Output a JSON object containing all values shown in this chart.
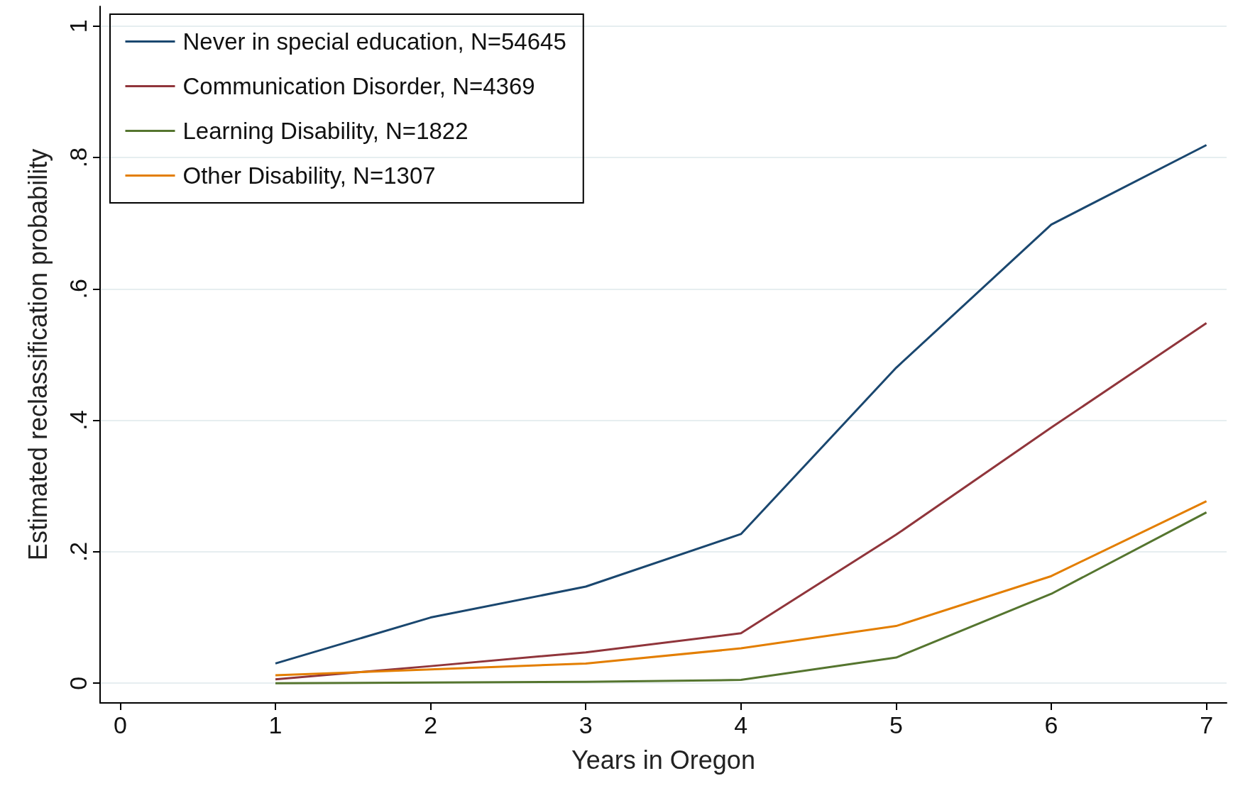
{
  "chart_data": {
    "type": "line",
    "xlabel": "Years in Oregon",
    "ylabel": "Estimated reclassification probability",
    "x": [
      1,
      2,
      3,
      4,
      5,
      6,
      7
    ],
    "series": [
      {
        "name": "Never in special education, N=54645",
        "color": "#1a476f",
        "values": [
          0.03,
          0.1,
          0.147,
          0.227,
          0.48,
          0.698,
          0.819
        ]
      },
      {
        "name": "Communication Disorder, N=4369",
        "color": "#90353b",
        "values": [
          0.006,
          0.026,
          0.047,
          0.076,
          0.226,
          0.389,
          0.548
        ]
      },
      {
        "name": "Learning Disability, N=1822",
        "color": "#55752f",
        "values": [
          0.0,
          0.001,
          0.002,
          0.005,
          0.039,
          0.136,
          0.26
        ]
      },
      {
        "name": "Other Disability, N=1307",
        "color": "#e37e00",
        "values": [
          0.012,
          0.021,
          0.03,
          0.053,
          0.087,
          0.163,
          0.277
        ]
      }
    ],
    "xlim": [
      -0.13,
      7.13
    ],
    "xticks": [
      0,
      1,
      2,
      3,
      4,
      5,
      6,
      7
    ],
    "ylim": [
      -0.03,
      1.03
    ],
    "yticks": [
      0,
      {
        "value": 0.2,
        "label": ".2"
      },
      {
        "value": 0.4,
        "label": ".4"
      },
      {
        "value": 0.6,
        "label": ".6"
      },
      {
        "value": 0.8,
        "label": ".8"
      },
      1
    ],
    "grid": "y",
    "legend": "top left",
    "marker": "none",
    "line_style": "solid"
  }
}
